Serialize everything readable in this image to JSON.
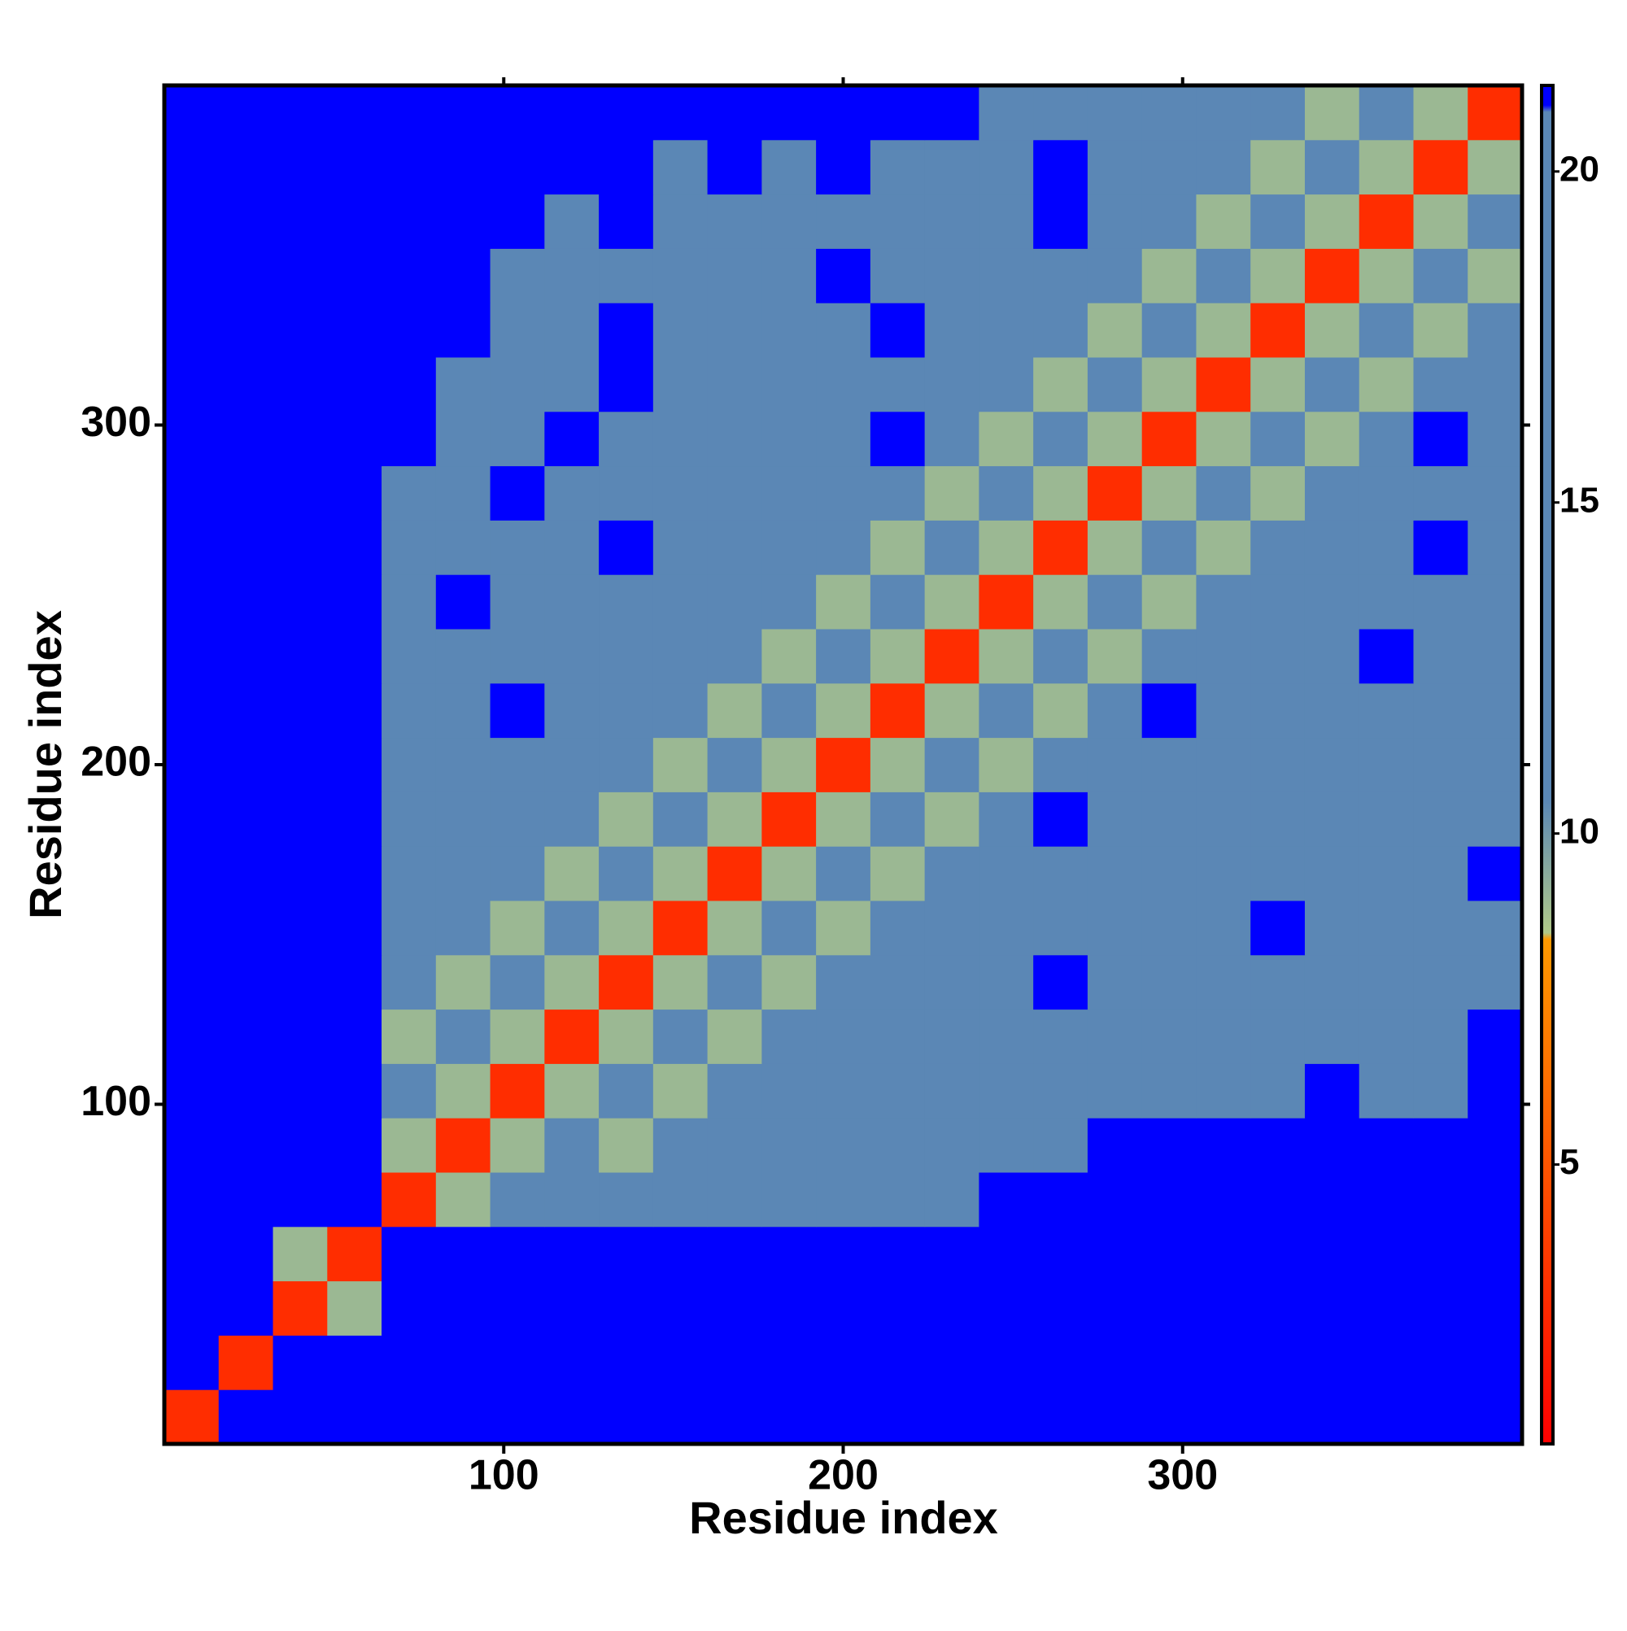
{
  "chart_data": {
    "type": "heatmap",
    "xlabel": "Residue index",
    "ylabel": "Residue index",
    "xlim": [
      0,
      400
    ],
    "ylim": [
      0,
      400
    ],
    "xticks": [
      100,
      200,
      300
    ],
    "yticks": [
      100,
      200,
      300
    ],
    "x": [
      8,
      24,
      40,
      56,
      72,
      88,
      104,
      120,
      136,
      152,
      168,
      184,
      200,
      216,
      232,
      248,
      264,
      280,
      296,
      312,
      328,
      344,
      360,
      376,
      392
    ],
    "y": [
      8,
      24,
      40,
      56,
      72,
      88,
      104,
      120,
      136,
      152,
      168,
      184,
      200,
      216,
      232,
      248,
      264,
      280,
      296,
      312,
      328,
      344,
      360,
      376,
      392
    ],
    "z": [
      [
        3,
        21,
        21,
        21,
        21,
        21,
        21,
        21,
        21,
        21,
        21,
        21,
        21,
        21,
        21,
        21,
        21,
        21,
        21,
        21,
        21,
        21,
        21,
        21,
        21
      ],
      [
        21,
        3,
        21,
        21,
        21,
        21,
        21,
        21,
        21,
        21,
        21,
        21,
        21,
        21,
        21,
        21,
        21,
        21,
        21,
        21,
        21,
        21,
        21,
        21,
        21
      ],
      [
        21,
        21,
        3,
        9,
        21,
        21,
        21,
        21,
        21,
        21,
        21,
        21,
        21,
        21,
        21,
        21,
        21,
        21,
        21,
        21,
        21,
        21,
        21,
        21,
        21
      ],
      [
        21,
        21,
        9,
        3,
        21,
        21,
        21,
        21,
        21,
        21,
        21,
        21,
        21,
        21,
        21,
        21,
        21,
        21,
        21,
        21,
        21,
        21,
        21,
        21,
        21
      ],
      [
        21,
        21,
        21,
        21,
        3,
        9,
        16,
        16,
        16,
        16,
        16,
        16,
        16,
        16,
        16,
        21,
        21,
        21,
        21,
        21,
        21,
        21,
        21,
        21,
        21
      ],
      [
        21,
        21,
        21,
        21,
        9,
        3,
        9,
        16,
        9,
        16,
        16,
        16,
        16,
        16,
        16,
        16,
        16,
        21,
        21,
        21,
        21,
        21,
        21,
        21,
        21
      ],
      [
        21,
        21,
        21,
        21,
        16,
        9,
        3,
        9,
        16,
        9,
        16,
        16,
        16,
        16,
        16,
        16,
        16,
        16,
        16,
        16,
        16,
        21,
        16,
        16,
        21
      ],
      [
        21,
        21,
        21,
        21,
        9,
        16,
        9,
        3,
        9,
        16,
        9,
        16,
        16,
        16,
        16,
        16,
        16,
        16,
        16,
        16,
        16,
        16,
        16,
        16,
        21
      ],
      [
        21,
        21,
        21,
        21,
        16,
        9,
        16,
        9,
        3,
        9,
        16,
        9,
        16,
        16,
        16,
        16,
        21,
        16,
        16,
        16,
        16,
        16,
        16,
        16,
        16
      ],
      [
        21,
        21,
        21,
        21,
        16,
        16,
        9,
        16,
        9,
        3,
        9,
        16,
        9,
        16,
        16,
        16,
        16,
        16,
        16,
        16,
        21,
        16,
        16,
        16,
        16
      ],
      [
        21,
        21,
        21,
        21,
        16,
        16,
        16,
        9,
        16,
        9,
        3,
        9,
        16,
        9,
        16,
        16,
        16,
        16,
        16,
        16,
        16,
        16,
        16,
        16,
        21
      ],
      [
        21,
        21,
        21,
        21,
        16,
        16,
        16,
        16,
        9,
        16,
        9,
        3,
        9,
        16,
        9,
        16,
        21,
        16,
        16,
        16,
        16,
        16,
        16,
        16,
        16
      ],
      [
        21,
        21,
        21,
        21,
        16,
        16,
        16,
        16,
        16,
        9,
        16,
        9,
        3,
        9,
        16,
        9,
        16,
        16,
        16,
        16,
        16,
        16,
        16,
        16,
        16
      ],
      [
        21,
        21,
        21,
        21,
        16,
        16,
        21,
        16,
        16,
        16,
        9,
        16,
        9,
        3,
        9,
        16,
        9,
        16,
        21,
        16,
        16,
        16,
        16,
        16,
        16
      ],
      [
        21,
        21,
        21,
        21,
        16,
        16,
        16,
        16,
        16,
        16,
        16,
        9,
        16,
        9,
        3,
        9,
        16,
        9,
        16,
        16,
        16,
        16,
        21,
        16,
        16
      ],
      [
        21,
        21,
        21,
        21,
        16,
        21,
        16,
        16,
        16,
        16,
        16,
        16,
        9,
        16,
        9,
        3,
        9,
        16,
        9,
        16,
        16,
        16,
        16,
        16,
        16
      ],
      [
        21,
        21,
        21,
        21,
        16,
        16,
        16,
        16,
        21,
        16,
        16,
        16,
        16,
        9,
        16,
        9,
        3,
        9,
        16,
        9,
        16,
        16,
        16,
        21,
        16
      ],
      [
        21,
        21,
        21,
        21,
        16,
        16,
        21,
        16,
        16,
        16,
        16,
        16,
        16,
        16,
        9,
        16,
        9,
        3,
        9,
        16,
        9,
        16,
        16,
        16,
        16
      ],
      [
        21,
        21,
        21,
        21,
        21,
        16,
        16,
        21,
        16,
        16,
        16,
        16,
        16,
        21,
        16,
        9,
        16,
        9,
        3,
        9,
        16,
        9,
        16,
        21,
        16
      ],
      [
        21,
        21,
        21,
        21,
        21,
        16,
        16,
        16,
        21,
        16,
        16,
        16,
        16,
        16,
        16,
        16,
        9,
        16,
        9,
        3,
        9,
        16,
        9,
        16,
        16
      ],
      [
        21,
        21,
        21,
        21,
        21,
        21,
        16,
        16,
        21,
        16,
        16,
        16,
        16,
        21,
        16,
        16,
        16,
        9,
        16,
        9,
        3,
        9,
        16,
        9,
        16
      ],
      [
        21,
        21,
        21,
        21,
        21,
        21,
        16,
        16,
        16,
        16,
        16,
        16,
        21,
        16,
        16,
        16,
        16,
        16,
        9,
        16,
        9,
        3,
        9,
        16,
        9
      ],
      [
        21,
        21,
        21,
        21,
        21,
        21,
        21,
        16,
        21,
        16,
        16,
        16,
        16,
        16,
        16,
        16,
        21,
        16,
        16,
        9,
        16,
        9,
        3,
        9,
        16
      ],
      [
        21,
        21,
        21,
        21,
        21,
        21,
        21,
        21,
        21,
        16,
        21,
        16,
        21,
        16,
        16,
        16,
        21,
        16,
        16,
        16,
        9,
        16,
        9,
        3,
        9
      ],
      [
        21,
        21,
        21,
        21,
        21,
        21,
        21,
        21,
        21,
        21,
        21,
        21,
        21,
        21,
        21,
        16,
        16,
        16,
        16,
        16,
        16,
        9,
        16,
        9,
        3
      ]
    ],
    "colorscale": [
      [
        0.78,
        "#ff0000"
      ],
      [
        8.4,
        "#ff9900"
      ],
      [
        8.5,
        "#b0c888"
      ],
      [
        10.5,
        "#5b87b5"
      ],
      [
        20.9,
        "#5b87b5"
      ],
      [
        21,
        "#0000ff"
      ],
      [
        21.3,
        "#0000ff"
      ]
    ],
    "colorbar": {
      "clim": [
        0.78,
        21.3
      ],
      "ticks": [
        5,
        10,
        15,
        20
      ]
    }
  }
}
